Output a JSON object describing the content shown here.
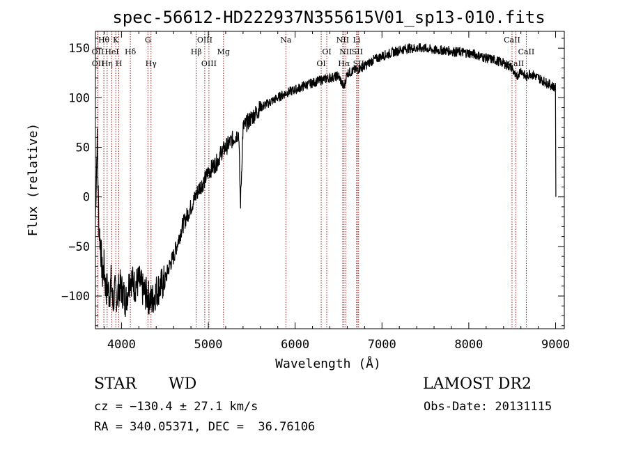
{
  "chart_data": {
    "type": "line",
    "title": "spec-56612-HD222937N355615V01_sp13-010.fits",
    "xlabel": "Wavelength (Å)",
    "ylabel": "Flux (relative)",
    "xlim": [
      3700,
      9100
    ],
    "ylim": [
      -133,
      167
    ],
    "xticks": [
      4000,
      5000,
      6000,
      7000,
      8000,
      9000
    ],
    "yticks": [
      -100,
      -50,
      0,
      50,
      100,
      150
    ],
    "grid": false,
    "line_color": "#000000",
    "marker_color": "#8b0000",
    "series": [
      {
        "x": [
          3700,
          3720,
          3740,
          3760,
          3780,
          3800,
          3820,
          3840,
          3860,
          3880,
          3900,
          3920,
          3950,
          3980,
          4010,
          4050,
          4100,
          4150,
          4200,
          4250,
          4300,
          4350,
          4400,
          4450,
          4500,
          4550,
          4600,
          4650,
          4700,
          4750,
          4800,
          4850,
          4900,
          4950,
          5000,
          5050,
          5100,
          5150,
          5200,
          5250,
          5300,
          5350,
          5370,
          5400,
          5450,
          5500,
          5600,
          5700,
          5800,
          5900,
          6000,
          6100,
          6200,
          6300,
          6400,
          6500,
          6562,
          6600,
          6700,
          6800,
          6900,
          7000,
          7100,
          7200,
          7300,
          7400,
          7500,
          7600,
          7700,
          7800,
          7900,
          8000,
          8100,
          8200,
          8300,
          8400,
          8500,
          8542,
          8600,
          8662,
          8700,
          8800,
          8900,
          9000,
          9003
        ],
        "y": [
          -20,
          60,
          -30,
          -50,
          -80,
          -70,
          -95,
          -90,
          -100,
          -85,
          -110,
          -95,
          -100,
          -90,
          -95,
          -105,
          -80,
          -90,
          -85,
          -95,
          -100,
          -105,
          -95,
          -90,
          -85,
          -70,
          -60,
          -45,
          -30,
          -20,
          -10,
          0,
          10,
          15,
          25,
          30,
          35,
          45,
          50,
          55,
          60,
          65,
          -8,
          70,
          75,
          80,
          90,
          95,
          100,
          105,
          108,
          112,
          115,
          118,
          120,
          122,
          110,
          125,
          128,
          132,
          138,
          142,
          145,
          148,
          150,
          150,
          150,
          148,
          148,
          147,
          146,
          145,
          143,
          140,
          138,
          135,
          130,
          120,
          128,
          120,
          125,
          120,
          115,
          110,
          0
        ]
      }
    ],
    "spectral_lines": [
      {
        "label": "Hθ",
        "x": 3797,
        "row": 1
      },
      {
        "label": "K",
        "x": 3934,
        "row": 1
      },
      {
        "label": "G",
        "x": 4304,
        "row": 1
      },
      {
        "label": "OIII",
        "x": 4959,
        "row": 1
      },
      {
        "label": "Na",
        "x": 5893,
        "row": 1
      },
      {
        "label": "NII",
        "x": 6548,
        "row": 1
      },
      {
        "label": "Li",
        "x": 6708,
        "row": 1
      },
      {
        "label": "CaII",
        "x": 8498,
        "row": 1
      },
      {
        "label": "OII",
        "x": 3727,
        "row": 2
      },
      {
        "label": "HeI",
        "x": 3889,
        "row": 2
      },
      {
        "label": "Hδ",
        "x": 4102,
        "row": 2
      },
      {
        "label": "Hβ",
        "x": 4861,
        "row": 2
      },
      {
        "label": "Mg",
        "x": 5175,
        "row": 2
      },
      {
        "label": "OI",
        "x": 6364,
        "row": 2
      },
      {
        "label": "NII",
        "x": 6583,
        "row": 2
      },
      {
        "label": "SII",
        "x": 6716,
        "row": 2
      },
      {
        "label": "CaII",
        "x": 8662,
        "row": 2
      },
      {
        "label": "OII",
        "x": 3729,
        "row": 3
      },
      {
        "label": "Hη",
        "x": 3835,
        "row": 3
      },
      {
        "label": "H",
        "x": 3969,
        "row": 3
      },
      {
        "label": "Hγ",
        "x": 4340,
        "row": 3
      },
      {
        "label": "OIII",
        "x": 5007,
        "row": 3
      },
      {
        "label": "OI",
        "x": 6300,
        "row": 3
      },
      {
        "label": "Hα",
        "x": 6563,
        "row": 3
      },
      {
        "label": "SII",
        "x": 6731,
        "row": 3
      },
      {
        "label": "CaII",
        "x": 8542,
        "row": 3
      }
    ]
  },
  "info": {
    "class": "STAR",
    "subclass": "WD",
    "survey": "LAMOST DR2",
    "cz": "cz = −130.4 ± 27.1 km/s",
    "obsdate": "Obs-Date: 20131115",
    "radec": "RA = 340.05371, DEC =  36.76106"
  }
}
